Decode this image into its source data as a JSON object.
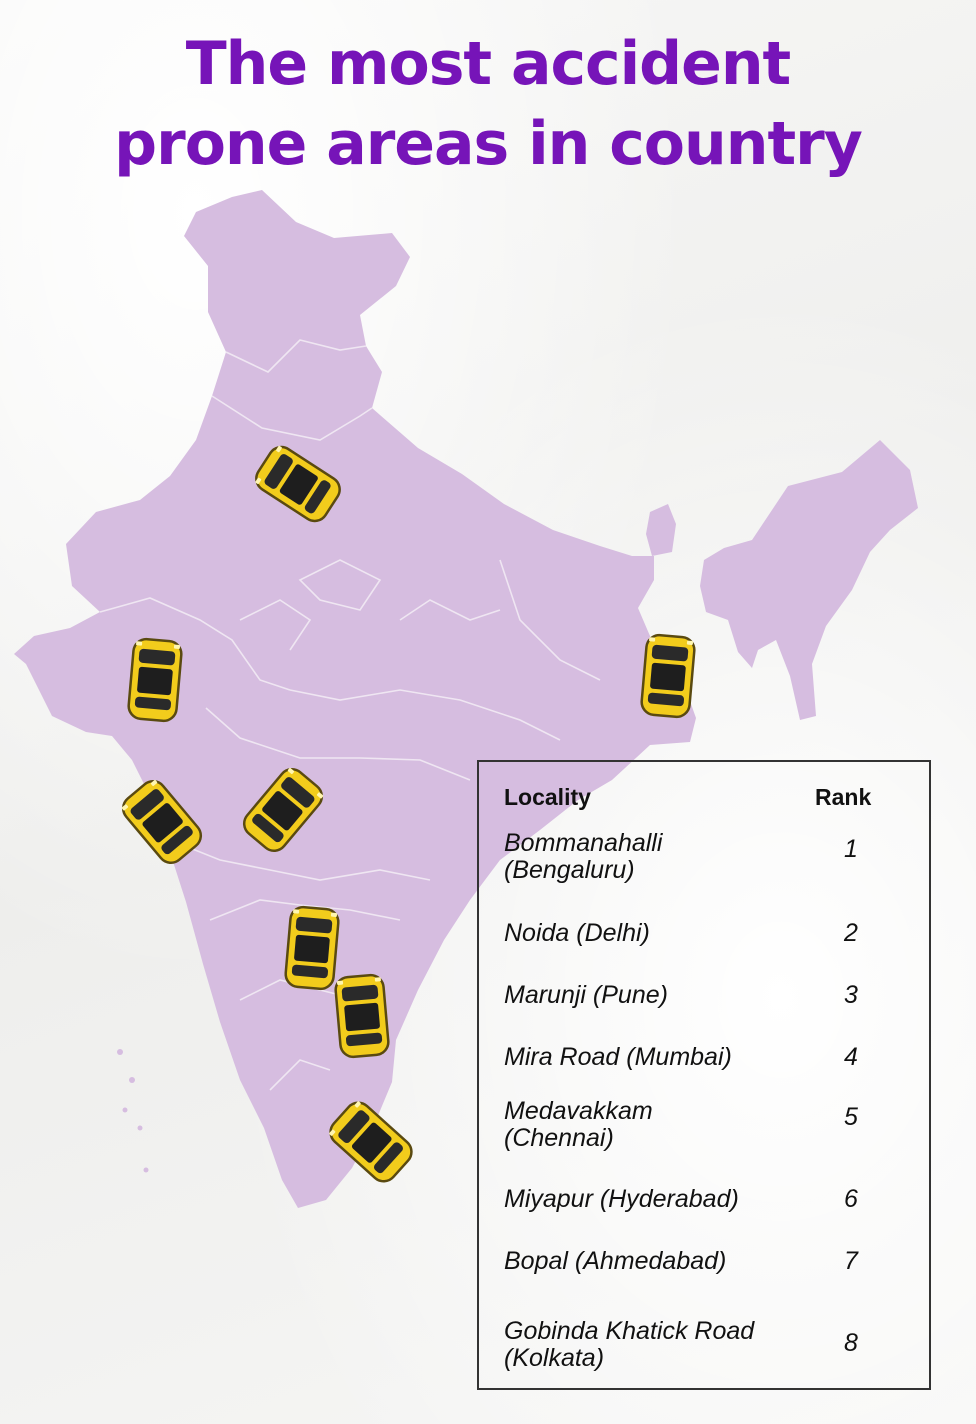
{
  "title": {
    "line1": "The most accident",
    "line2": "prone areas in country"
  },
  "map": {
    "fill_color": "#d6bde0",
    "border_color": "#efe6f2",
    "marker_icon": "taxi-car-icon",
    "marker_color": "#f2cc1c"
  },
  "legend": {
    "col_locality": "Locality",
    "col_rank": "Rank",
    "rows": [
      {
        "locality": "Bommanahalli (Bengaluru)",
        "rank": "1"
      },
      {
        "locality": "Noida (Delhi)",
        "rank": "2"
      },
      {
        "locality": "Marunji (Pune)",
        "rank": "3"
      },
      {
        "locality": "Mira Road (Mumbai)",
        "rank": "4"
      },
      {
        "locality": "Medavakkam (Chennai)",
        "rank": "5"
      },
      {
        "locality": "Miyapur (Hyderabad)",
        "rank": "6"
      },
      {
        "locality": "Bopal (Ahmedabad)",
        "rank": "7"
      },
      {
        "locality": "Gobinda Khatick Road (Kolkata)",
        "rank": "8"
      }
    ]
  }
}
